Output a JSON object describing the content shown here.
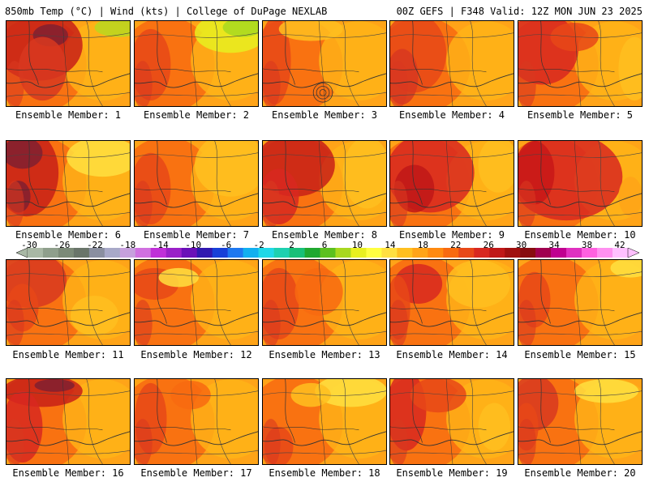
{
  "header": {
    "left_title": "850mb Temp (°C) | Wind (kts) | College of DuPage NEXLAB",
    "right_title": "00Z GEFS | F348 Valid: 12Z MON JUN 23 2025"
  },
  "colorbar": {
    "tick_labels": [
      "-30",
      "-26",
      "-22",
      "-18",
      "-14",
      "-10",
      "-6",
      "-2",
      "2",
      "6",
      "10",
      "14",
      "18",
      "22",
      "26",
      "30",
      "34",
      "38",
      "42"
    ],
    "colors": [
      "#a9b8a5",
      "#8f9f8c",
      "#7c8a78",
      "#6a756a",
      "#8a8fa0",
      "#a8a9c8",
      "#c7a0dd",
      "#d070e0",
      "#c030d8",
      "#9a20c8",
      "#6a10b8",
      "#3018b0",
      "#1840d8",
      "#1e78f0",
      "#12b0f0",
      "#20d8e8",
      "#1ed0b0",
      "#18c078",
      "#20a830",
      "#5cc020",
      "#a8d820",
      "#e8f020",
      "#ffff40",
      "#ffe040",
      "#ffc020",
      "#ffa418",
      "#ff8a10",
      "#f86a10",
      "#e84818",
      "#d82820",
      "#c01818",
      "#a01010",
      "#880c10",
      "#a00050",
      "#c00090",
      "#e030c0",
      "#ff60e0",
      "#ff90f0",
      "#ffc0ff"
    ]
  },
  "members": [
    {
      "label": "Ensemble Member: 1"
    },
    {
      "label": "Ensemble Member: 2"
    },
    {
      "label": "Ensemble Member: 3"
    },
    {
      "label": "Ensemble Member: 4"
    },
    {
      "label": "Ensemble Member: 5"
    },
    {
      "label": "Ensemble Member: 6"
    },
    {
      "label": "Ensemble Member: 7"
    },
    {
      "label": "Ensemble Member: 8"
    },
    {
      "label": "Ensemble Member: 9"
    },
    {
      "label": "Ensemble Member: 10"
    },
    {
      "label": "Ensemble Member: 11"
    },
    {
      "label": "Ensemble Member: 12"
    },
    {
      "label": "Ensemble Member: 13"
    },
    {
      "label": "Ensemble Member: 14"
    },
    {
      "label": "Ensemble Member: 15"
    },
    {
      "label": "Ensemble Member: 16"
    },
    {
      "label": "Ensemble Member: 17"
    },
    {
      "label": "Ensemble Member: 18"
    },
    {
      "label": "Ensemble Member: 19"
    },
    {
      "label": "Ensemble Member: 20"
    }
  ]
}
